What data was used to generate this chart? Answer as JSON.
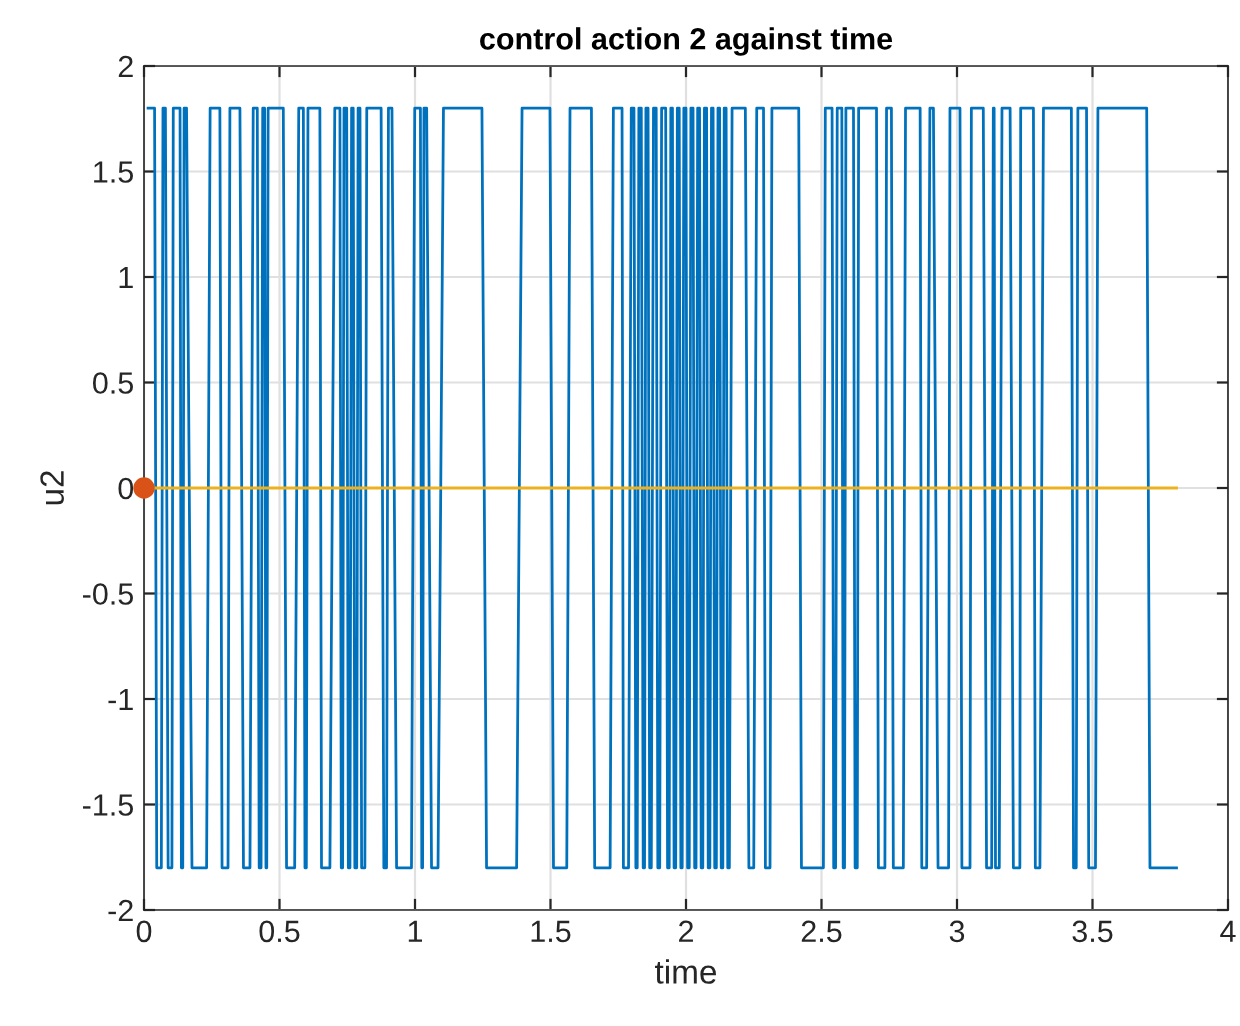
{
  "chart_data": {
    "type": "line",
    "title": "control action 2 against time",
    "xlabel": "time",
    "ylabel": "u2",
    "xlim": [
      0,
      4
    ],
    "xticks": [
      0,
      0.5,
      1,
      1.5,
      2,
      2.5,
      3,
      3.5,
      4
    ],
    "ylim": [
      -2,
      2
    ],
    "yticks": [
      -2,
      -1.5,
      -1,
      -0.5,
      0,
      0.5,
      1,
      1.5,
      2
    ],
    "grid": true,
    "legend": false,
    "series": [
      {
        "color": "#0072bd",
        "x": [
          0.015,
          0.039,
          0.047,
          0.064,
          0.07,
          0.079,
          0.089,
          0.103,
          0.108,
          0.133,
          0.138,
          0.143,
          0.148,
          0.157,
          0.177,
          0.231,
          0.244,
          0.28,
          0.288,
          0.31,
          0.317,
          0.354,
          0.367,
          0.391,
          0.403,
          0.418,
          0.425,
          0.432,
          0.438,
          0.445,
          0.45,
          0.453,
          0.458,
          0.514,
          0.526,
          0.556,
          0.571,
          0.588,
          0.594,
          0.599,
          0.605,
          0.649,
          0.655,
          0.686,
          0.704,
          0.723,
          0.728,
          0.733,
          0.738,
          0.748,
          0.754,
          0.76,
          0.766,
          0.772,
          0.778,
          0.785,
          0.79,
          0.797,
          0.803,
          0.815,
          0.822,
          0.875,
          0.885,
          0.895,
          0.902,
          0.915,
          0.932,
          0.987,
          0.999,
          1.02,
          1.025,
          1.028,
          1.033,
          1.043,
          1.061,
          1.085,
          1.105,
          1.247,
          1.264,
          1.375,
          1.395,
          1.498,
          1.511,
          1.56,
          1.572,
          1.651,
          1.663,
          1.72,
          1.732,
          1.764,
          1.769,
          1.788,
          1.798,
          1.808,
          1.815,
          1.82,
          1.826,
          1.835,
          1.842,
          1.847,
          1.852,
          1.86,
          1.866,
          1.872,
          1.88,
          1.89,
          1.896,
          1.903,
          1.91,
          1.925,
          1.932,
          1.938,
          1.944,
          1.95,
          1.956,
          1.962,
          1.968,
          1.975,
          1.981,
          1.986,
          1.992,
          2.0,
          2.006,
          2.012,
          2.018,
          2.026,
          2.032,
          2.037,
          2.043,
          2.05,
          2.056,
          2.062,
          2.068,
          2.076,
          2.082,
          2.088,
          2.094,
          2.1,
          2.106,
          2.112,
          2.118,
          2.124,
          2.13,
          2.136,
          2.141,
          2.148,
          2.154,
          2.16,
          2.17,
          2.219,
          2.232,
          2.25,
          2.261,
          2.286,
          2.293,
          2.31,
          2.317,
          2.416,
          2.426,
          2.507,
          2.514,
          2.539,
          2.545,
          2.552,
          2.558,
          2.575,
          2.58,
          2.585,
          2.59,
          2.618,
          2.624,
          2.632,
          2.637,
          2.703,
          2.71,
          2.734,
          2.74,
          2.758,
          2.765,
          2.802,
          2.81,
          2.864,
          2.87,
          2.888,
          2.9,
          2.913,
          2.93,
          2.969,
          2.974,
          3.011,
          3.018,
          3.048,
          3.053,
          3.097,
          3.109,
          3.128,
          3.134,
          3.137,
          3.142,
          3.156,
          3.166,
          3.196,
          3.208,
          3.232,
          3.235,
          3.282,
          3.289,
          3.306,
          3.319,
          3.422,
          3.43,
          3.44,
          3.446,
          3.478,
          3.486,
          3.511,
          3.52,
          3.7,
          3.712,
          3.81
        ],
        "values": [
          1.8,
          1.8,
          -1.8,
          -1.8,
          1.8,
          1.8,
          -1.8,
          -1.8,
          1.8,
          1.8,
          -1.8,
          -1.8,
          1.8,
          1.8,
          -1.8,
          -1.8,
          1.8,
          1.8,
          -1.8,
          -1.8,
          1.8,
          1.8,
          -1.8,
          -1.8,
          1.8,
          1.8,
          -1.8,
          -1.8,
          1.8,
          1.8,
          -1.8,
          -1.8,
          1.8,
          1.8,
          -1.8,
          -1.8,
          1.8,
          1.8,
          -1.8,
          -1.8,
          1.8,
          1.8,
          -1.8,
          -1.8,
          1.8,
          1.8,
          -1.8,
          -1.8,
          1.8,
          1.8,
          -1.8,
          -1.8,
          1.8,
          1.8,
          -1.8,
          -1.8,
          1.8,
          1.8,
          -1.8,
          -1.8,
          1.8,
          1.8,
          -1.8,
          -1.8,
          1.8,
          1.8,
          -1.8,
          -1.8,
          1.8,
          1.8,
          -1.8,
          -1.8,
          1.8,
          1.8,
          -1.8,
          -1.8,
          1.8,
          1.8,
          -1.8,
          -1.8,
          1.8,
          1.8,
          -1.8,
          -1.8,
          1.8,
          1.8,
          -1.8,
          -1.8,
          1.8,
          1.8,
          -1.8,
          -1.8,
          1.8,
          1.8,
          -1.8,
          -1.8,
          1.8,
          1.8,
          -1.8,
          -1.8,
          1.8,
          1.8,
          -1.8,
          -1.8,
          1.8,
          1.8,
          -1.8,
          -1.8,
          1.8,
          1.8,
          -1.8,
          -1.8,
          1.8,
          1.8,
          -1.8,
          -1.8,
          1.8,
          1.8,
          -1.8,
          -1.8,
          1.8,
          1.8,
          -1.8,
          -1.8,
          1.8,
          1.8,
          -1.8,
          -1.8,
          1.8,
          1.8,
          -1.8,
          -1.8,
          1.8,
          1.8,
          -1.8,
          -1.8,
          1.8,
          1.8,
          -1.8,
          -1.8,
          1.8,
          1.8,
          -1.8,
          -1.8,
          1.8,
          1.8,
          -1.8,
          -1.8,
          1.8,
          1.8,
          -1.8,
          -1.8,
          1.8,
          1.8,
          -1.8,
          -1.8,
          1.8,
          1.8,
          -1.8,
          -1.8,
          1.8,
          1.8,
          -1.8,
          -1.8,
          1.8,
          1.8,
          -1.8,
          -1.8,
          1.8,
          1.8,
          -1.8,
          -1.8,
          1.8,
          1.8,
          -1.8,
          -1.8,
          1.8,
          1.8,
          -1.8,
          -1.8,
          1.8,
          1.8,
          -1.8,
          -1.8,
          1.8,
          1.8,
          -1.8,
          -1.8,
          1.8,
          1.8,
          -1.8,
          -1.8,
          1.8,
          1.8,
          -1.8,
          -1.8,
          1.8,
          1.8,
          -1.8,
          -1.8,
          1.8,
          1.8,
          -1.8,
          -1.8,
          1.8,
          1.8,
          -1.8,
          -1.8,
          1.8,
          1.8,
          -1.8,
          -1.8,
          1.8,
          1.8,
          -1.8,
          -1.8,
          1.8,
          1.8,
          -1.8,
          -1.8
        ]
      },
      {
        "color": "#edb120",
        "x": [
          0,
          3.81
        ],
        "values": [
          0,
          0
        ]
      },
      {
        "type": "scatter",
        "color": "#d95319",
        "marker": "circle",
        "x": [
          0
        ],
        "values": [
          0
        ]
      }
    ]
  }
}
